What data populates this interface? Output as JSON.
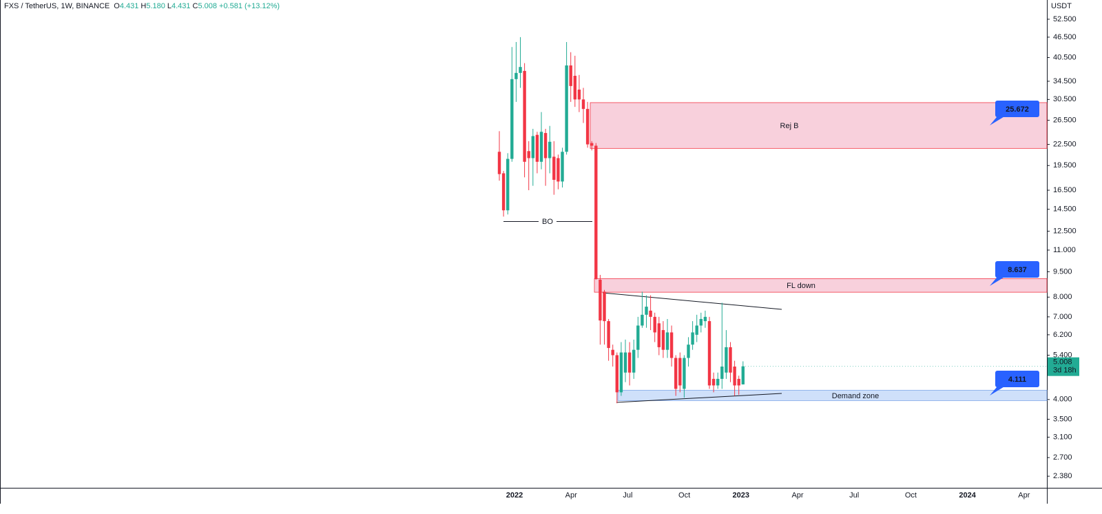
{
  "header": {
    "symbol": "FXS / TetherUS, 1W, BINANCE",
    "ohlc": [
      {
        "key": "O",
        "value": "4.431"
      },
      {
        "key": "H",
        "value": "5.180"
      },
      {
        "key": "L",
        "value": "4.431"
      },
      {
        "key": "C",
        "value": "5.008"
      }
    ],
    "change": "+0.581 (+13.12%)"
  },
  "chart_data": {
    "type": "candlestick",
    "currency": "USDT",
    "log_scale": true,
    "up_color": "#22ab94",
    "down_color": "#f23645",
    "ylim": [
      2.2,
      59.8
    ],
    "yticks": [
      {
        "value": 52.5,
        "label": "52.500"
      },
      {
        "value": 46.5,
        "label": "46.500"
      },
      {
        "value": 40.5,
        "label": "40.500"
      },
      {
        "value": 34.5,
        "label": "34.500"
      },
      {
        "value": 30.5,
        "label": "30.500"
      },
      {
        "value": 26.5,
        "label": "26.500"
      },
      {
        "value": 22.5,
        "label": "22.500"
      },
      {
        "value": 19.5,
        "label": "19.500"
      },
      {
        "value": 16.5,
        "label": "16.500"
      },
      {
        "value": 14.5,
        "label": "14.500"
      },
      {
        "value": 12.5,
        "label": "12.500"
      },
      {
        "value": 11,
        "label": "11.000"
      },
      {
        "value": 9.5,
        "label": "9.500"
      },
      {
        "value": 8,
        "label": "8.000"
      },
      {
        "value": 7,
        "label": "7.000"
      },
      {
        "value": 6.2,
        "label": "6.200"
      },
      {
        "value": 5.4,
        "label": "5.400"
      },
      {
        "value": 4,
        "label": "4.000"
      },
      {
        "value": 3.5,
        "label": "3.500"
      },
      {
        "value": 3.1,
        "label": "3.100"
      },
      {
        "value": 2.7,
        "label": "2.700"
      },
      {
        "value": 2.38,
        "label": "2.380"
      }
    ],
    "xticks": [
      "2022",
      "Apr",
      "Jul",
      "Oct",
      "2023",
      "Apr",
      "Jul",
      "Oct",
      "2024",
      "Apr"
    ],
    "open": [
      21.4,
      18.5,
      14.4,
      20.4,
      35,
      36.5,
      37,
      21.5,
      20.5,
      24,
      20,
      24.3,
      20.5,
      20.7,
      20.5,
      17.5,
      21.4,
      38.4,
      35.8,
      32.6,
      30.5,
      28.6,
      22.7,
      22.3,
      9.0,
      8.3,
      6.8,
      5.6,
      5.4,
      4.2,
      4.8,
      5.5,
      4.8,
      5.6,
      6.6,
      7.1,
      7.3,
      7.0,
      6.7,
      6.4,
      5.6,
      6.3,
      5.3,
      5.3,
      4.3,
      5.3,
      5.8,
      6.2,
      6.6,
      6.8,
      6.8,
      4.6,
      4.4,
      4.6,
      4.8,
      5.7,
      5.0,
      4.6,
      4.431
    ],
    "high": [
      24.6,
      18.8,
      21.2,
      43.5,
      45,
      46.5,
      39,
      23,
      25,
      24.5,
      28,
      25,
      25.5,
      23,
      21,
      22,
      45,
      42,
      41,
      36,
      33,
      30,
      23,
      22.7,
      9.3,
      8.4,
      6.9,
      5.8,
      5.5,
      5.9,
      6.0,
      5.9,
      6.0,
      7.0,
      8.3,
      8.1,
      8.1,
      7.2,
      7.0,
      6.8,
      6.9,
      6.6,
      5.4,
      5.5,
      5.4,
      6.1,
      6.8,
      7.1,
      7.2,
      7.3,
      7.0,
      4.8,
      4.8,
      7.7,
      6.4,
      5.9,
      5.2,
      4.7,
      5.18
    ],
    "low": [
      17.6,
      13.8,
      14.0,
      20,
      30,
      33,
      18,
      16.5,
      17,
      18.5,
      19,
      17,
      18.5,
      16,
      16.6,
      16.8,
      21,
      30,
      29,
      28,
      26,
      22,
      21.6,
      9.0,
      5.8,
      5.8,
      5.2,
      5.0,
      3.9,
      4.1,
      4.5,
      4.4,
      4.6,
      5.3,
      6.5,
      6.5,
      6.4,
      5.9,
      5.4,
      5.3,
      5.3,
      5.0,
      4.1,
      4.2,
      4.05,
      5.0,
      5.6,
      5.9,
      6.3,
      6.5,
      4.3,
      4.2,
      4.3,
      4.3,
      4.6,
      4.5,
      4.1,
      4.13,
      4.431
    ],
    "close": [
      18.4,
      14.4,
      20.4,
      35,
      36.5,
      38,
      20,
      20.5,
      23.8,
      20,
      24.5,
      20.5,
      22.9,
      17.7,
      17.5,
      21.4,
      38.4,
      33.4,
      30.5,
      30.5,
      28.6,
      22.5,
      22.3,
      9.04,
      6.83,
      6.8,
      5.67,
      5.4,
      4.2,
      5.5,
      5.5,
      4.8,
      5.6,
      6.6,
      7.1,
      7.5,
      7.0,
      6.3,
      5.7,
      5.6,
      6.3,
      5.3,
      4.3,
      4.4,
      5.3,
      5.8,
      6.3,
      6.6,
      6.9,
      7.0,
      4.4,
      4.4,
      4.6,
      5.0,
      5.7,
      4.8,
      4.4,
      4.4,
      5.008
    ],
    "last_price": {
      "label": "5.008",
      "countdown": "3d 18h"
    },
    "breakout_label": "BO",
    "zones": [
      {
        "name": "Rej B",
        "range": [
          21.9,
          29.85
        ],
        "callout": "25.672",
        "color": "#f8d0dc",
        "border": "#f23645"
      },
      {
        "name": "FL down",
        "range": [
          8.27,
          9.07
        ],
        "callout": "8.637",
        "color": "#f8d0dc",
        "border": "#f23645"
      },
      {
        "name": "Demand zone",
        "range": [
          3.97,
          4.26
        ],
        "callout": "4.111",
        "color": "#cfe0fa",
        "border": "#7fa6e8"
      }
    ]
  }
}
